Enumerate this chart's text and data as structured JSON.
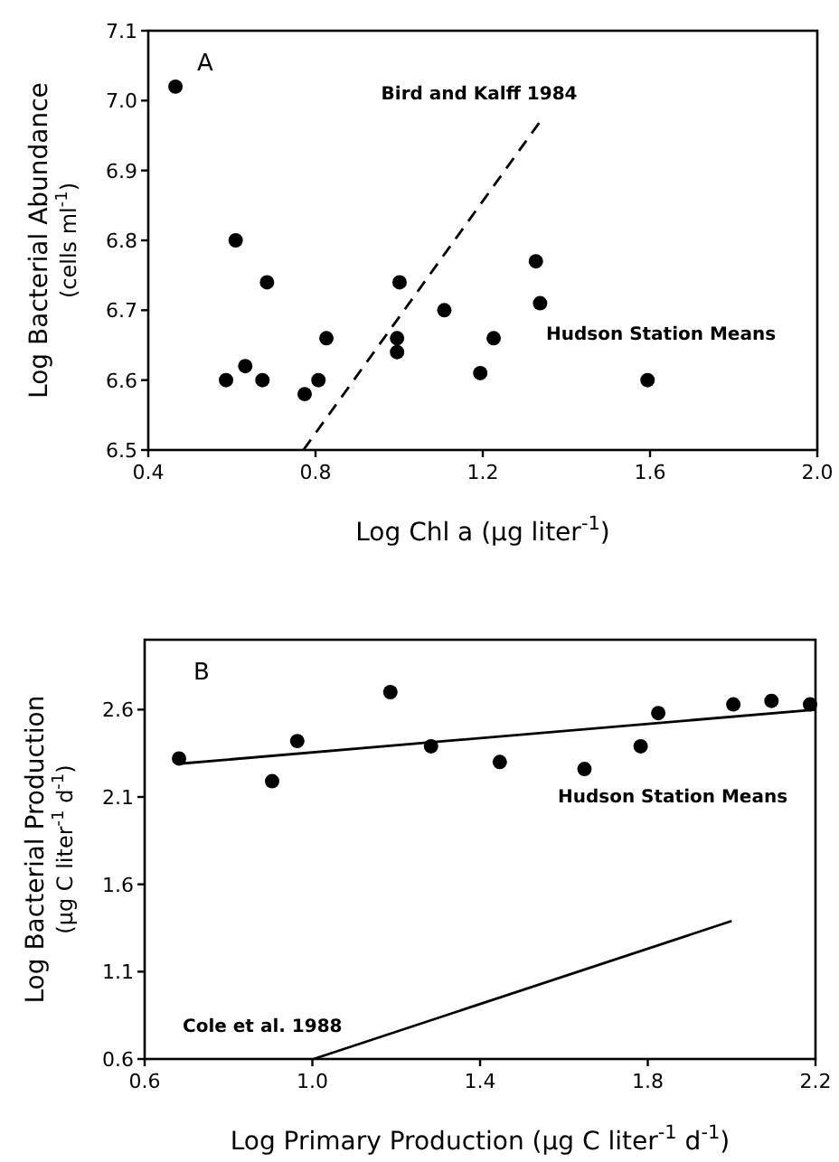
{
  "chart_data": [
    {
      "type": "scatter",
      "xlabel": "Log Chl a  (μg liter$^{-1}$)",
      "ylabel": "Log Bacterial Abundance\n(cells ml$^{-1}$)",
      "xlim": [
        0.4,
        2.0
      ],
      "xticks": [
        0.4,
        0.8,
        1.2,
        1.6,
        {
          "value": 2.0,
          "label": "2.0"
        }
      ],
      "ylim": [
        6.5,
        7.1
      ],
      "yticks": [
        6.5,
        6.6,
        6.7,
        6.8,
        6.9,
        {
          "value": 7.0,
          "label": "7.0"
        },
        7.1
      ],
      "grid": false,
      "series": [
        {
          "name": "Hudson Station Means",
          "marker": "circle",
          "color": "#000000",
          "x": [
            0.465,
            0.609,
            0.684,
            0.586,
            0.632,
            0.673,
            0.774,
            0.807,
            0.826,
            1.001,
            0.995,
            0.995,
            1.108,
            1.194,
            1.226,
            1.327,
            1.337,
            1.594
          ],
          "values": [
            7.02,
            6.8,
            6.74,
            6.6,
            6.62,
            6.6,
            6.58,
            6.6,
            6.66,
            6.74,
            6.66,
            6.64,
            6.7,
            6.61,
            6.66,
            6.77,
            6.71,
            6.6
          ]
        },
        {
          "name": "Bird and Kalff 1984",
          "type": "line",
          "line_style": "dashed",
          "color": "#000000",
          "x": [
            0.771,
            1.337
          ],
          "values": [
            6.5,
            6.97
          ]
        }
      ],
      "annotations": [
        "A"
      ]
    },
    {
      "type": "scatter",
      "xlabel": "Log Primary Production (μg C liter$^{-1}$ d$^{-1}$)",
      "ylabel": "Log Bacterial Production\n(μg C liter$^{-1}$ d$^{-1}$)",
      "xlim": [
        0.6,
        2.2
      ],
      "xticks": [
        0.6,
        {
          "value": 1.0,
          "label": "1.0"
        },
        1.4,
        1.8,
        2.2
      ],
      "ylim": [
        0.6,
        3.0
      ],
      "yticks": [
        0.6,
        1.1,
        1.6,
        2.1,
        2.6
      ],
      "grid": false,
      "series": [
        {
          "name": "Hudson Station Means",
          "marker": "circle",
          "color": "#000000",
          "x": [
            0.682,
            0.904,
            0.964,
            1.186,
            1.283,
            1.447,
            1.649,
            1.783,
            1.825,
            2.004,
            2.095,
            2.187
          ],
          "values": [
            2.32,
            2.19,
            2.42,
            2.7,
            2.39,
            2.3,
            2.26,
            2.39,
            2.58,
            2.63,
            2.65,
            2.63
          ]
        },
        {
          "type": "line",
          "line_style": "solid",
          "color": "#000000",
          "x": [
            0.682,
            2.2
          ],
          "values": [
            2.29,
            2.6
          ]
        },
        {
          "name": "Cole et al. 1988",
          "type": "line",
          "line_style": "solid",
          "color": "#000000",
          "x": [
            1.003,
            2.0
          ],
          "values": [
            0.6,
            1.39
          ]
        }
      ],
      "annotations": [
        "B"
      ]
    }
  ]
}
